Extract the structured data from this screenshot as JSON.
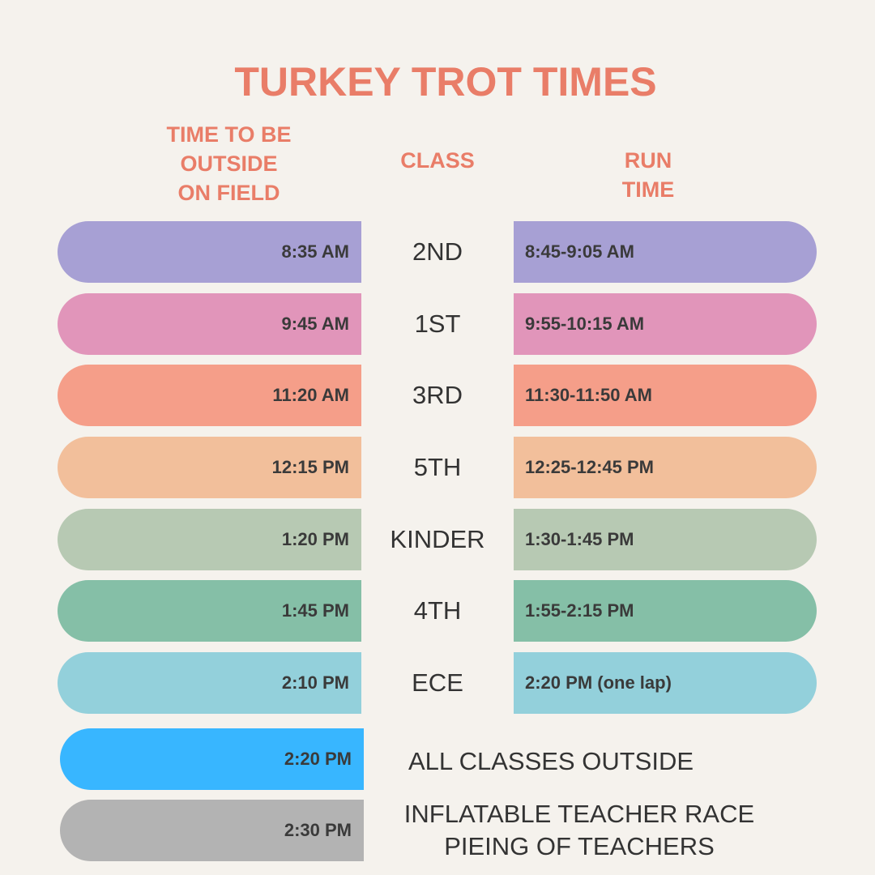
{
  "title": "TURKEY TROT TIMES",
  "headers": {
    "outside": "TIME TO BE\nOUTSIDE\nON FIELD",
    "class": "CLASS",
    "run": "RUN\nTIME"
  },
  "rows": [
    {
      "outside": "8:35 AM",
      "class": "2ND",
      "run": "8:45-9:05 AM",
      "color": "#A7A0D4"
    },
    {
      "outside": "9:45 AM",
      "class": "1ST",
      "run": "9:55-10:15 AM",
      "color": "#E195BA"
    },
    {
      "outside": "11:20 AM",
      "class": "3RD",
      "run": "11:30-11:50 AM",
      "color": "#F59E89"
    },
    {
      "outside": "12:15 PM",
      "class": "5TH",
      "run": "12:25-12:45 PM",
      "color": "#F2BF9B"
    },
    {
      "outside": "1:20 PM",
      "class": "KINDER",
      "run": "1:30-1:45 PM",
      "color": "#B7C9B3"
    },
    {
      "outside": "1:45 PM",
      "class": "4TH",
      "run": "1:55-2:15 PM",
      "color": "#85BFA7"
    },
    {
      "outside": "2:10 PM",
      "class": "ECE",
      "run": "2:20 PM (one lap)",
      "color": "#93D0DB"
    }
  ],
  "events": [
    {
      "time": "2:20 PM",
      "text": "ALL CLASSES OUTSIDE",
      "color": "#38B6FF"
    },
    {
      "time": "2:30 PM",
      "text": "INFLATABLE TEACHER RACE\nPIEING OF TEACHERS",
      "color": "#B3B3B3"
    }
  ]
}
